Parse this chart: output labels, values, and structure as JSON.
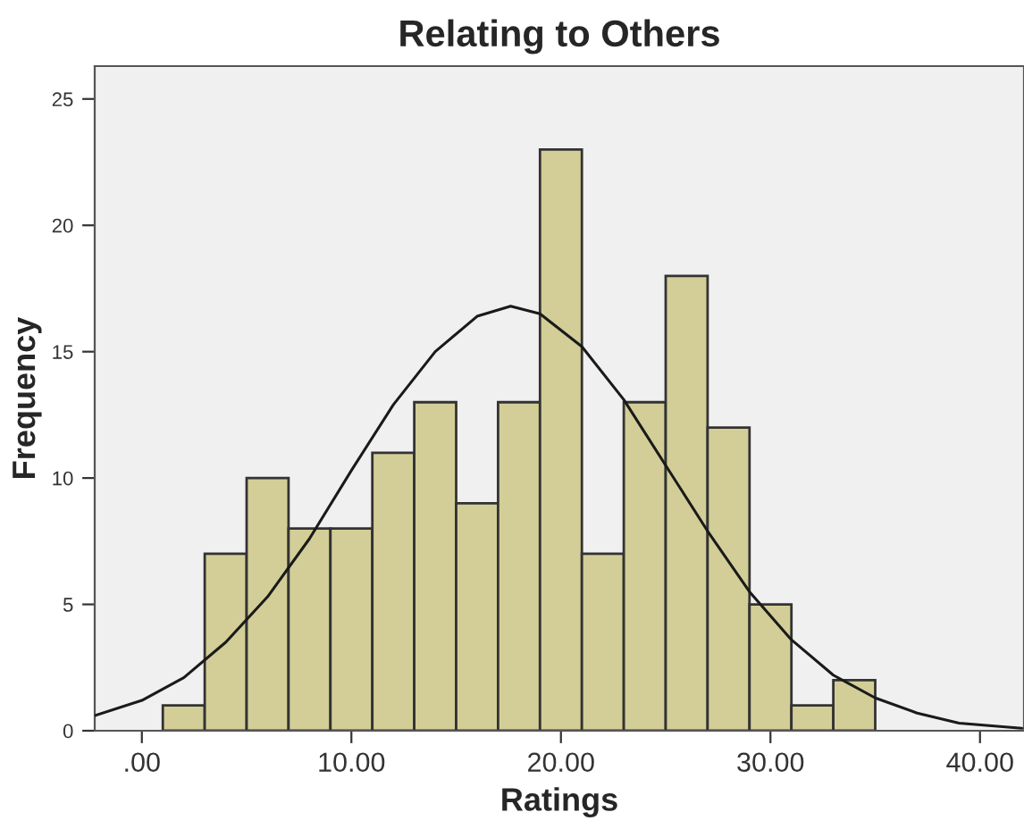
{
  "chart_data": {
    "type": "histogram",
    "title": "Relating to Others",
    "xlabel": "Ratings",
    "ylabel": "Frequency",
    "bins": [
      1,
      3,
      5,
      7,
      9,
      11,
      13,
      15,
      17,
      19,
      21,
      23,
      25,
      27,
      29,
      31,
      33,
      35
    ],
    "values": [
      1,
      7,
      10,
      8,
      8,
      11,
      13,
      9,
      13,
      23,
      7,
      13,
      18,
      12,
      5,
      1,
      2
    ],
    "color": "#d3ce97",
    "series": [
      {
        "type": "line",
        "color": "#1a1a1a",
        "x": [
          -2.25,
          0,
          2,
          4,
          6,
          8,
          10,
          12,
          14,
          16,
          17.6,
          19,
          21,
          23,
          25,
          27,
          29,
          31,
          33,
          35,
          37,
          39,
          42
        ],
        "values": [
          0.6,
          1.2,
          2.1,
          3.5,
          5.3,
          7.6,
          10.3,
          12.9,
          15.0,
          16.4,
          16.8,
          16.5,
          15.2,
          13.1,
          10.5,
          7.9,
          5.5,
          3.6,
          2.2,
          1.3,
          0.7,
          0.3,
          0.1
        ]
      }
    ],
    "xlim": [
      -2.25,
      42.1
    ],
    "ylim": [
      0,
      26.3
    ],
    "xticks": [
      {
        "value": 0,
        "label": ".00"
      },
      {
        "value": 10,
        "label": "10.00"
      },
      {
        "value": 20,
        "label": "20.00"
      },
      {
        "value": 30,
        "label": "30.00"
      },
      {
        "value": 40,
        "label": "40.00"
      }
    ],
    "yticks": [
      0,
      5,
      10,
      15,
      20,
      25
    ],
    "grid": false
  }
}
